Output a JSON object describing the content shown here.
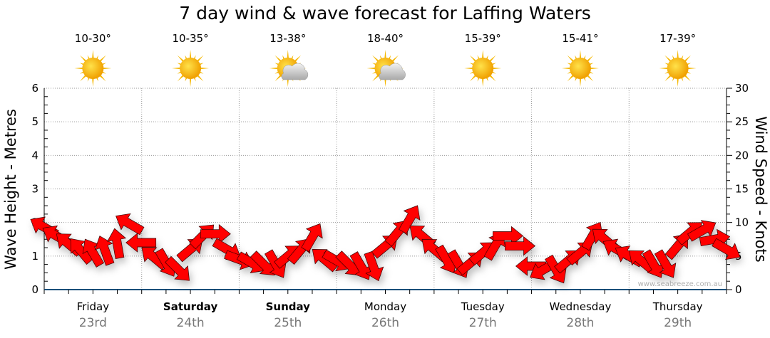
{
  "title": "7 day wind & wave forecast for Laffing Waters",
  "days": [
    {
      "name": "Friday",
      "date": "23rd",
      "temp": "10-30°",
      "icon": "sun-icon",
      "bold": false
    },
    {
      "name": "Saturday",
      "date": "24th",
      "temp": "10-35°",
      "icon": "sun-icon",
      "bold": true
    },
    {
      "name": "Sunday",
      "date": "25th",
      "temp": "13-38°",
      "icon": "sun-cloud-icon",
      "bold": true
    },
    {
      "name": "Monday",
      "date": "26th",
      "temp": "18-40°",
      "icon": "sun-cloud-icon",
      "bold": false
    },
    {
      "name": "Tuesday",
      "date": "27th",
      "temp": "15-39°",
      "icon": "sun-icon",
      "bold": false
    },
    {
      "name": "Wednesday",
      "date": "28th",
      "temp": "15-41°",
      "icon": "sun-icon",
      "bold": false
    },
    {
      "name": "Thursday",
      "date": "29th",
      "temp": "17-39°",
      "icon": "sun-icon",
      "bold": false
    }
  ],
  "watermark": "www.seabreeze.com.au",
  "colors": {
    "arrow": "#ff0000",
    "axis": "#1a4f7a",
    "grid": "#999999"
  },
  "chart_data": {
    "type": "scatter",
    "title": "7 day wind & wave forecast for Laffing Waters",
    "ylabel": "Wave Height - Metres",
    "y2label": "Wind Speed - Knots",
    "ylim": [
      0,
      6
    ],
    "y2lim": [
      0,
      30
    ],
    "yticks": [
      "0",
      "1",
      "2",
      "3",
      "4",
      "5",
      "6"
    ],
    "y2ticks": [
      "0",
      "5",
      "10",
      "15",
      "20",
      "25",
      "30"
    ],
    "x_interval_hours": 3,
    "wind_knots": [
      9.3,
      8,
      6.8,
      5.8,
      5.5,
      5.8,
      6.8,
      9.8,
      7,
      4.8,
      4,
      3,
      6,
      8,
      8.3,
      6,
      4.5,
      4,
      3.8,
      3.8,
      5,
      5.8,
      7.8,
      4.5,
      4.3,
      3.8,
      3.5,
      3.5,
      6.5,
      8.5,
      10.5,
      8,
      6,
      4.5,
      3.8,
      4,
      5.5,
      6.5,
      8,
      6.5,
      3.5,
      3,
      3,
      4.3,
      5.5,
      8,
      7.5,
      6,
      5,
      4.3,
      3.8,
      3.8,
      6.5,
      8.5,
      8.8,
      7.5,
      6
    ],
    "wind_arrow_angle_deg": [
      -150,
      -150,
      -140,
      -130,
      -120,
      -110,
      -100,
      -150,
      180,
      -140,
      60,
      45,
      -40,
      -45,
      0,
      30,
      20,
      30,
      45,
      60,
      -40,
      -50,
      -60,
      -140,
      30,
      45,
      60,
      70,
      -40,
      -50,
      -60,
      -140,
      -140,
      60,
      60,
      -40,
      -40,
      -60,
      0,
      0,
      180,
      150,
      60,
      -40,
      -40,
      -60,
      -140,
      -150,
      -150,
      -140,
      60,
      60,
      -50,
      -40,
      -30,
      -10,
      30
    ]
  }
}
